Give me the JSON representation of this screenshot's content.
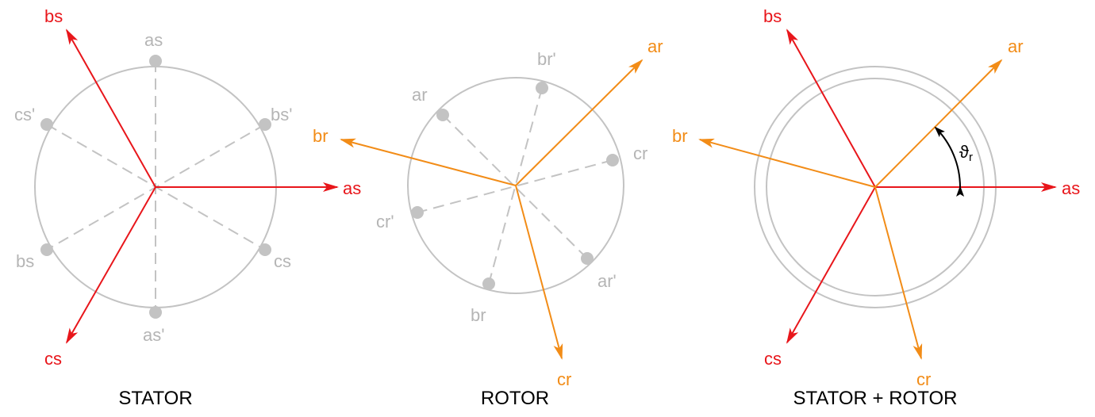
{
  "stator": {
    "title": "STATOR",
    "axes": {
      "as": "as",
      "bs": "bs",
      "cs": "cs"
    },
    "conductors": {
      "as": "as",
      "as_prime": "as'",
      "bs": "bs",
      "bs_prime": "bs'",
      "cs": "cs",
      "cs_prime": "cs'"
    }
  },
  "rotor": {
    "title": "ROTOR",
    "axes": {
      "ar": "ar",
      "br": "br",
      "cr": "cr"
    },
    "conductors": {
      "ar": "ar",
      "ar_prime": "ar'",
      "br": "br",
      "br_prime": "br'",
      "cr": "cr",
      "cr_prime": "cr'"
    }
  },
  "combined": {
    "title": "STATOR + ROTOR",
    "axes": {
      "as": "as",
      "bs": "bs",
      "cs": "cs",
      "ar": "ar",
      "br": "br",
      "cr": "cr"
    },
    "angle_label": "ϑ",
    "angle_subscript": "r"
  },
  "colors": {
    "stator": "#e8161b",
    "rotor": "#f28c17",
    "winding": "#c3c3c3"
  }
}
